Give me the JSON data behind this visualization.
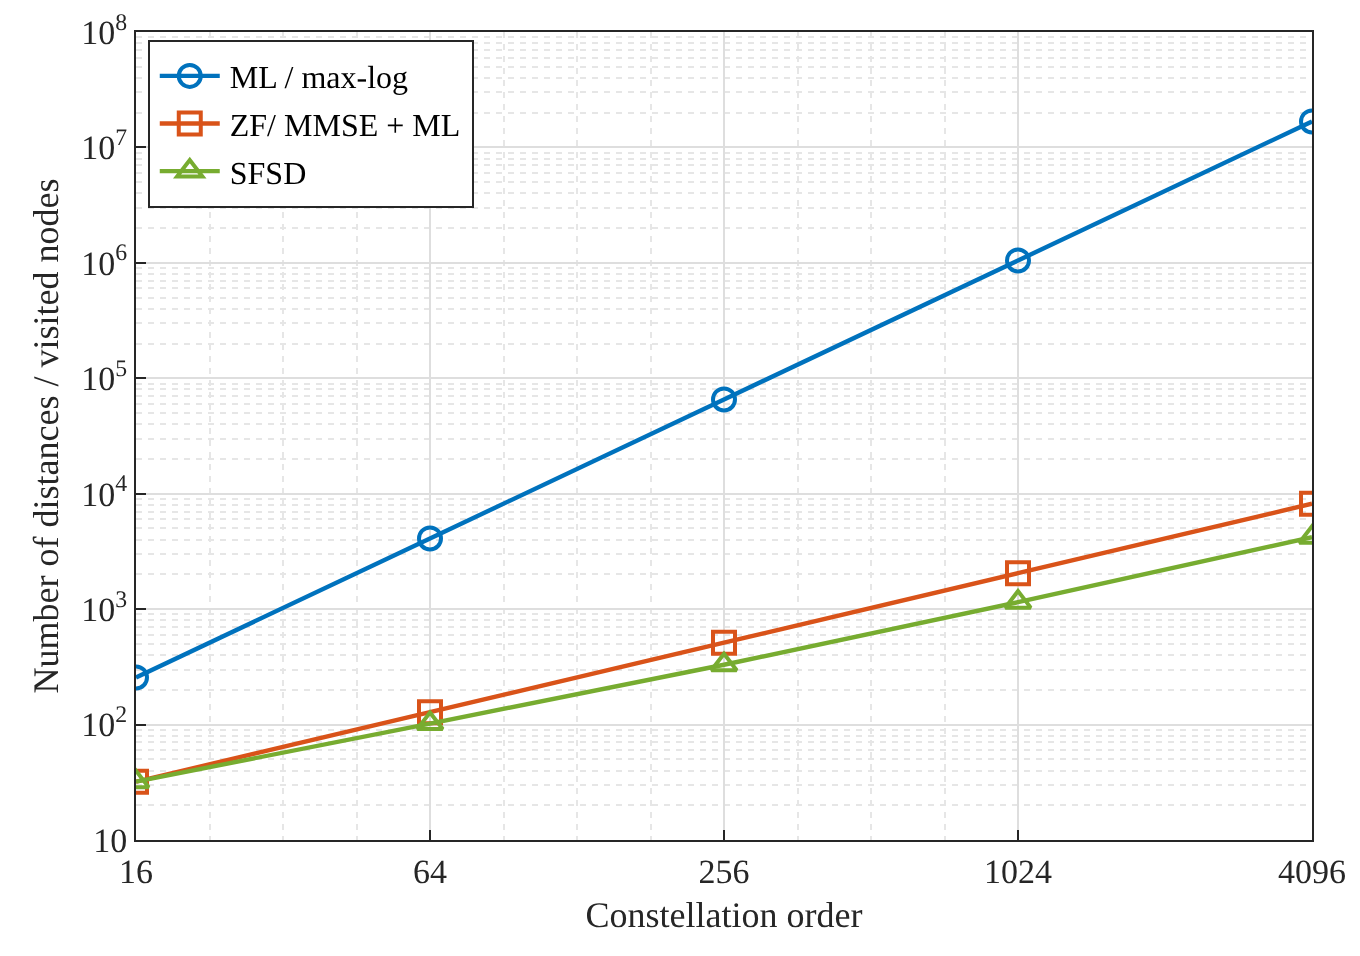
{
  "chart_data": {
    "type": "line",
    "xlabel": "Constellation order",
    "ylabel": "Number of distances / visited nodes",
    "x": [
      16,
      64,
      256,
      1024,
      4096
    ],
    "series": [
      {
        "name": "ML / max-log",
        "color": "#0072bd",
        "marker": "circle",
        "values": [
          256,
          4096,
          65536,
          1048576,
          16777216
        ]
      },
      {
        "name": "ZF/ MMSE + ML",
        "color": "#d95319",
        "marker": "square",
        "values": [
          32,
          128,
          512,
          2048,
          8192
        ]
      },
      {
        "name": "SFSD",
        "color": "#77ac30",
        "marker": "triangle",
        "values": [
          32,
          102,
          330,
          1150,
          4200
        ]
      }
    ],
    "log": "xy",
    "xlim": [
      16,
      4096
    ],
    "xticks": [
      16,
      64,
      256,
      1024,
      4096
    ],
    "ylim": [
      10,
      100000000
    ],
    "yticks": [
      {
        "value": 10,
        "label": "10"
      },
      {
        "value": 100,
        "label": "10$^{2}$"
      },
      {
        "value": 1000,
        "label": "10$^{3}$"
      },
      {
        "value": 10000,
        "label": "10$^{4}$"
      },
      {
        "value": 100000,
        "label": "10$^{5}$"
      },
      {
        "value": 1000000,
        "label": "10$^{6}$"
      },
      {
        "value": 10000000,
        "label": "10$^{7}$"
      },
      {
        "value": 100000000,
        "label": "10$^{8}$"
      }
    ],
    "grid": true,
    "legend": "top left",
    "line_style": "solid"
  }
}
